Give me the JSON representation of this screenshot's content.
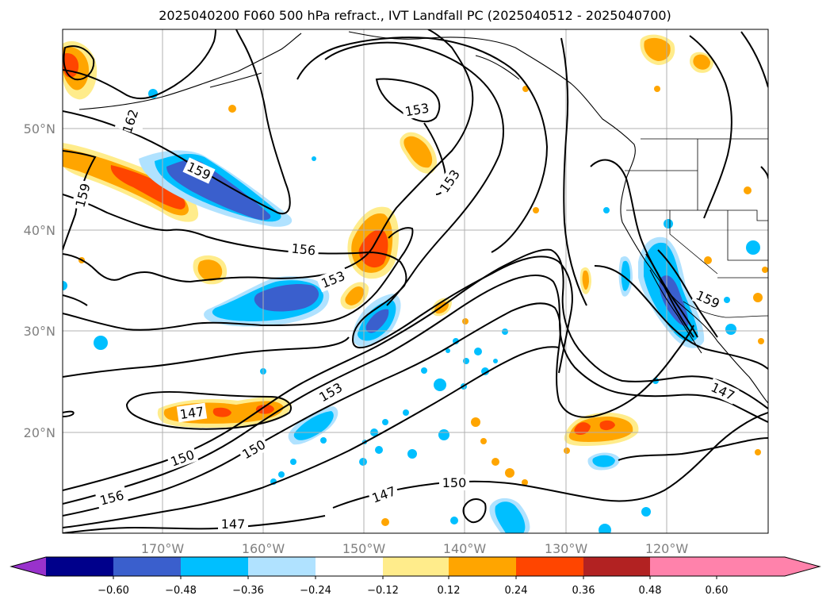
{
  "title": "2025040200 F060 500 hPa refract., IVT Landfall PC (2025040512 - 2025040700)",
  "lat_labels": [
    "50°N",
    "40°N",
    "30°N",
    "20°N"
  ],
  "lon_labels": [
    "170°W",
    "160°W",
    "150°W",
    "140°W",
    "130°W",
    "120°W"
  ],
  "contour_labels": [
    "162",
    "159",
    "159",
    "153",
    "153",
    "156",
    "153",
    "159",
    "147",
    "153",
    "147",
    "150",
    "150",
    "156",
    "147",
    "150",
    "147"
  ],
  "colorbar": {
    "ticks": [
      "−0.60",
      "−0.48",
      "−0.36",
      "−0.24",
      "−0.12",
      "0.12",
      "0.24",
      "0.36",
      "0.48",
      "0.60"
    ],
    "colors": [
      "#9932CC",
      "#00008B",
      "#3A5FCD",
      "#00BFFF",
      "#B0E2FF",
      "#FFFFFF",
      "#FFEC8B",
      "#FFA500",
      "#FF4500",
      "#B22222",
      "#FF82AB"
    ]
  },
  "colors": {
    "neg_light": "#B0E2FF",
    "neg_mid": "#00BFFF",
    "neg_strong": "#3A5FCD",
    "pos_light": "#FFEC8B",
    "pos_mid": "#FFA500",
    "pos_strong": "#FF4500",
    "grid": "#b0b0b0",
    "axis_label": "#808080"
  }
}
